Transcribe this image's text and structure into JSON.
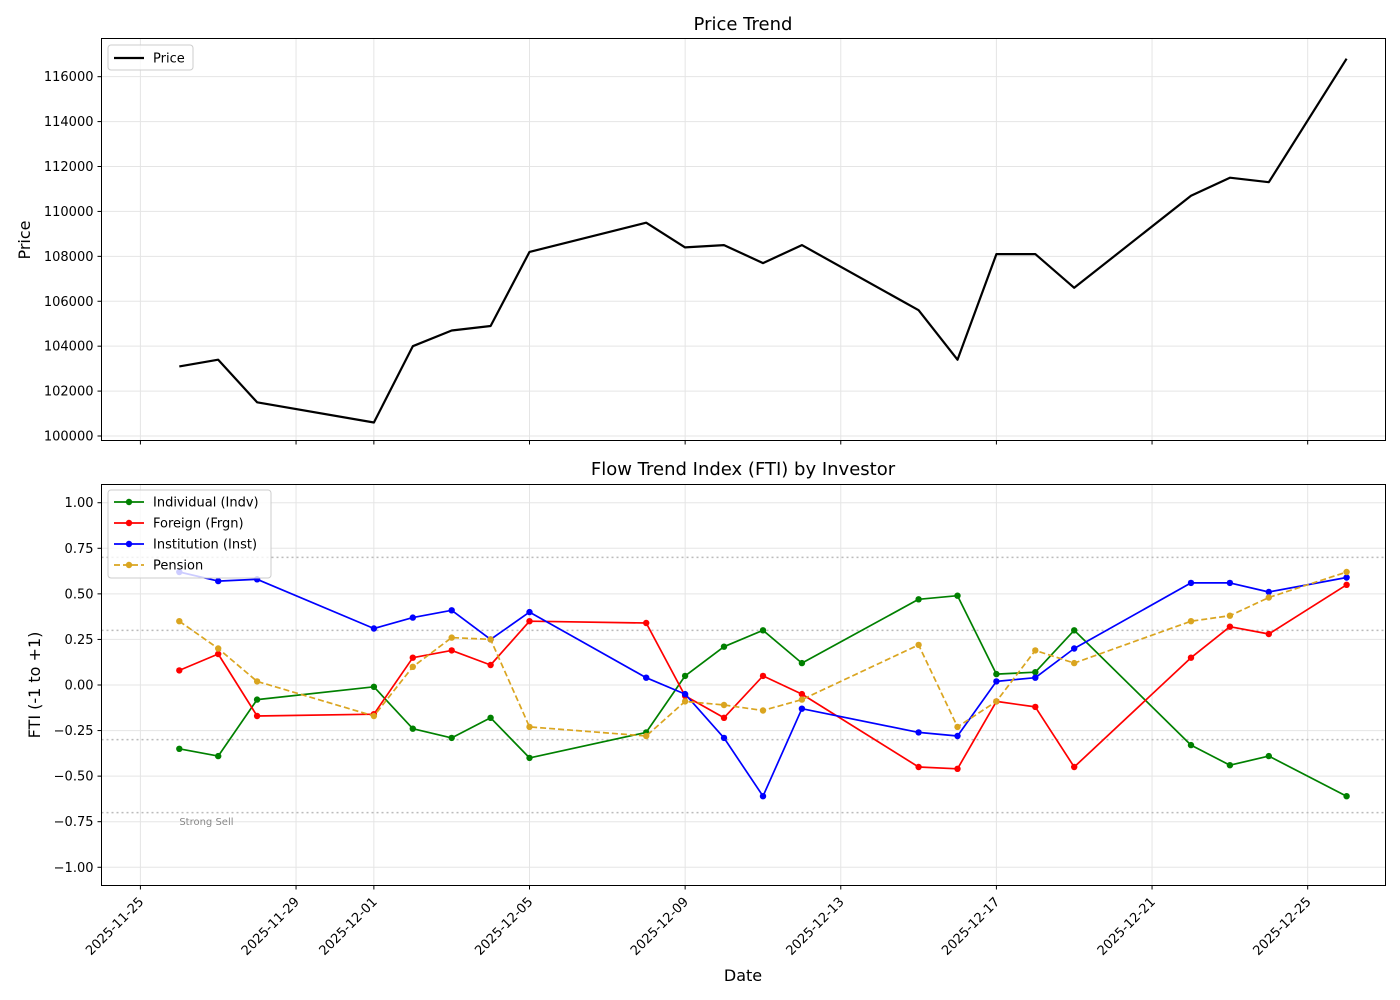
{
  "chart_data": [
    {
      "type": "line",
      "title": "Price Trend",
      "xlabel": "",
      "ylabel": "Price",
      "ylim": [
        99800,
        117700
      ],
      "yticks": [
        100000,
        102000,
        104000,
        106000,
        108000,
        110000,
        112000,
        114000,
        116000
      ],
      "ytick_labels": [
        "100000",
        "102000",
        "104000",
        "106000",
        "108000",
        "110000",
        "112000",
        "114000",
        "116000"
      ],
      "grid": true,
      "legend_position": "top-left",
      "series": [
        {
          "name": "Price",
          "color": "#000000",
          "style": "solid",
          "markers": false,
          "x": [
            "2025-11-26",
            "2025-11-27",
            "2025-11-28",
            "2025-12-01",
            "2025-12-02",
            "2025-12-03",
            "2025-12-04",
            "2025-12-05",
            "2025-12-08",
            "2025-12-09",
            "2025-12-10",
            "2025-12-11",
            "2025-12-12",
            "2025-12-15",
            "2025-12-16",
            "2025-12-17",
            "2025-12-18",
            "2025-12-19",
            "2025-12-22",
            "2025-12-23",
            "2025-12-24",
            "2025-12-26"
          ],
          "values": [
            103100,
            103400,
            101500,
            100600,
            104000,
            104700,
            104900,
            108200,
            109500,
            108400,
            108500,
            107700,
            108500,
            105600,
            103400,
            108100,
            108100,
            106600,
            110700,
            111500,
            111300,
            116800
          ]
        }
      ]
    },
    {
      "type": "line",
      "title": "Flow Trend Index (FTI) by Investor",
      "xlabel": "Date",
      "ylabel": "FTI (-1 to +1)",
      "ylim": [
        -1.1,
        1.1
      ],
      "yticks": [
        -1.0,
        -0.75,
        -0.5,
        -0.25,
        0.0,
        0.25,
        0.5,
        0.75,
        1.0
      ],
      "ytick_labels": [
        "−1.00",
        "−0.75",
        "−0.50",
        "−0.25",
        "0.00",
        "0.25",
        "0.50",
        "0.75",
        "1.00"
      ],
      "xlim": [
        "2025-11-24",
        "2025-12-27"
      ],
      "xticks": [
        "2025-11-25",
        "2025-11-29",
        "2025-12-01",
        "2025-12-05",
        "2025-12-09",
        "2025-12-13",
        "2025-12-17",
        "2025-12-21",
        "2025-12-25"
      ],
      "grid": true,
      "legend_position": "top-left",
      "reference_lines": [
        0.7,
        0.3,
        -0.3,
        -0.7
      ],
      "annotations": [
        {
          "text": "Strong Sell",
          "x": "2025-11-26",
          "y": -0.72
        }
      ],
      "x": [
        "2025-11-26",
        "2025-11-27",
        "2025-11-28",
        "2025-12-01",
        "2025-12-02",
        "2025-12-03",
        "2025-12-04",
        "2025-12-05",
        "2025-12-08",
        "2025-12-09",
        "2025-12-10",
        "2025-12-11",
        "2025-12-12",
        "2025-12-15",
        "2025-12-16",
        "2025-12-17",
        "2025-12-18",
        "2025-12-19",
        "2025-12-22",
        "2025-12-23",
        "2025-12-24",
        "2025-12-26"
      ],
      "series": [
        {
          "name": "Individual (Indv)",
          "color": "#008000",
          "style": "solid",
          "values": [
            -0.35,
            -0.39,
            -0.08,
            -0.01,
            -0.24,
            -0.29,
            -0.18,
            -0.4,
            -0.26,
            0.05,
            0.21,
            0.3,
            0.12,
            0.47,
            0.49,
            0.06,
            0.07,
            0.3,
            -0.33,
            -0.44,
            -0.39,
            -0.61
          ]
        },
        {
          "name": "Foreign (Frgn)",
          "color": "#ff0000",
          "style": "solid",
          "values": [
            0.08,
            0.17,
            -0.17,
            -0.16,
            0.15,
            0.19,
            0.11,
            0.35,
            0.34,
            -0.06,
            -0.18,
            0.05,
            -0.05,
            -0.45,
            -0.46,
            -0.09,
            -0.12,
            -0.45,
            0.15,
            0.32,
            0.28,
            0.55
          ]
        },
        {
          "name": "Institution (Inst)",
          "color": "#0000ff",
          "style": "solid",
          "values": [
            0.62,
            0.57,
            0.58,
            0.31,
            0.37,
            0.41,
            0.25,
            0.4,
            0.04,
            -0.05,
            -0.29,
            -0.61,
            -0.13,
            -0.26,
            -0.28,
            0.02,
            0.04,
            0.2,
            0.56,
            0.56,
            0.51,
            0.59
          ]
        },
        {
          "name": "Pension",
          "color": "#daa520",
          "style": "dashed",
          "values": [
            0.35,
            0.2,
            0.02,
            -0.17,
            0.1,
            0.26,
            0.25,
            -0.23,
            -0.28,
            -0.09,
            -0.11,
            -0.14,
            -0.08,
            0.22,
            -0.23,
            -0.09,
            0.19,
            0.12,
            0.35,
            0.38,
            0.48,
            0.62
          ]
        }
      ]
    }
  ]
}
